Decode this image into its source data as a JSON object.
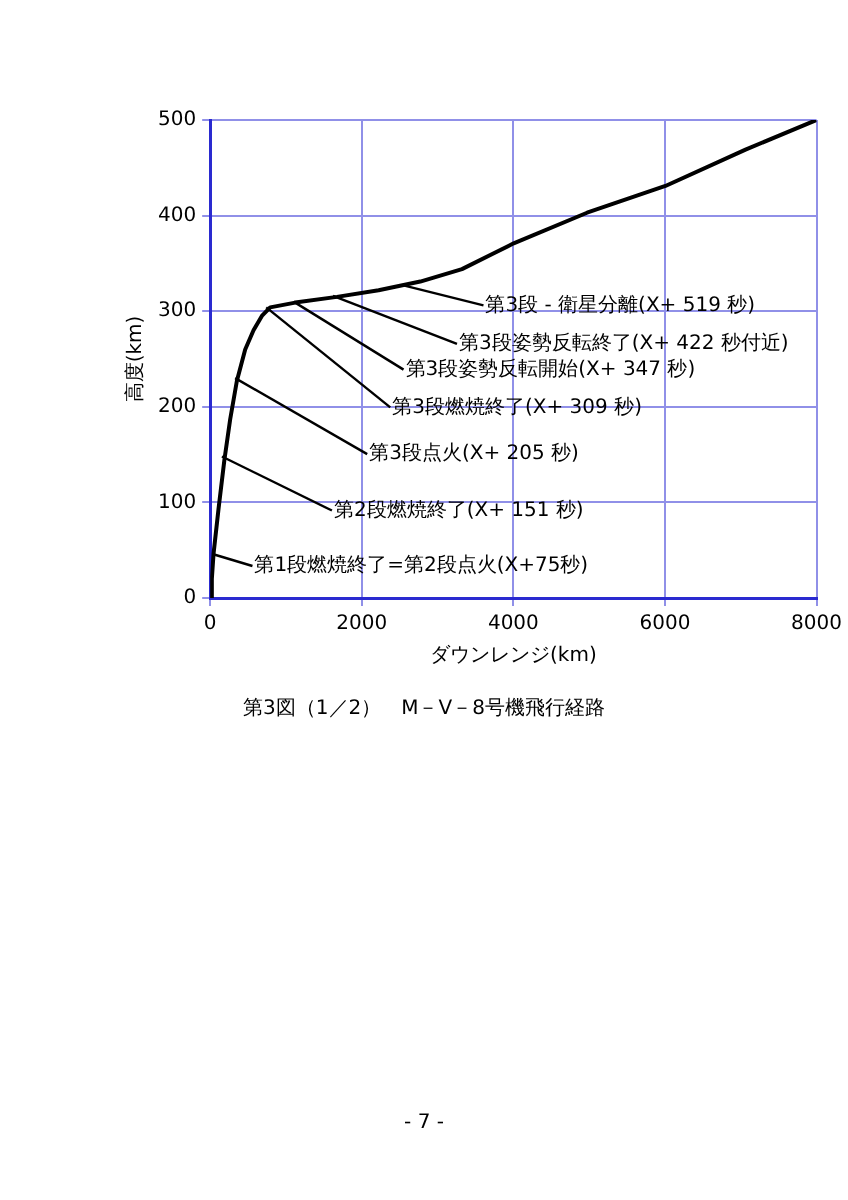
{
  "chart_data": {
    "type": "line",
    "title": "第3図（1／2）　M－V－8号機飛行経路",
    "xlabel": "ダウンレンジ(km)",
    "ylabel": "高度(km)",
    "x": [
      0,
      22,
      44,
      110,
      187,
      264,
      352,
      462,
      572,
      682,
      792,
      1122,
      1672,
      2222,
      2772,
      3322,
      4004,
      4972,
      6006,
      7063,
      7998
    ],
    "series": [
      {
        "color": "#000000",
        "values": [
          0,
          20,
          46,
          93,
          144,
          187,
          227,
          260,
          280,
          295,
          304,
          309,
          315,
          322,
          331,
          344,
          371,
          403,
          431,
          469,
          500
        ]
      }
    ],
    "xlim": [
      0,
      8000
    ],
    "xticks": [
      0,
      2000,
      4000,
      6000,
      8000
    ],
    "ylim": [
      0,
      500
    ],
    "yticks": [
      0,
      100,
      200,
      300,
      400,
      500
    ],
    "grid": true,
    "legend": false,
    "marker": "none",
    "line_style": "solid",
    "annotations": [
      {
        "text": "第1段燃焼終了=第2段点火(X+75秒)",
        "x": 30,
        "y": 46
      },
      {
        "text": "第2段燃焼終了(X+ 151 秒)",
        "x": 155,
        "y": 148
      },
      {
        "text": "第3段点火(X+ 205 秒)",
        "x": 330,
        "y": 230
      },
      {
        "text": "第3段燃焼終了(X+ 309 秒)",
        "x": 740,
        "y": 304
      },
      {
        "text": "第3段姿勢反転開始(X+ 347 秒)",
        "x": 1100,
        "y": 310
      },
      {
        "text": "第3段姿勢反転終了(X+ 422 秒付近)",
        "x": 1620,
        "y": 316
      },
      {
        "text": "第3段 - 衛星分離(X+ 519 秒)",
        "x": 2550,
        "y": 327
      },
      "- 7 -"
    ]
  }
}
